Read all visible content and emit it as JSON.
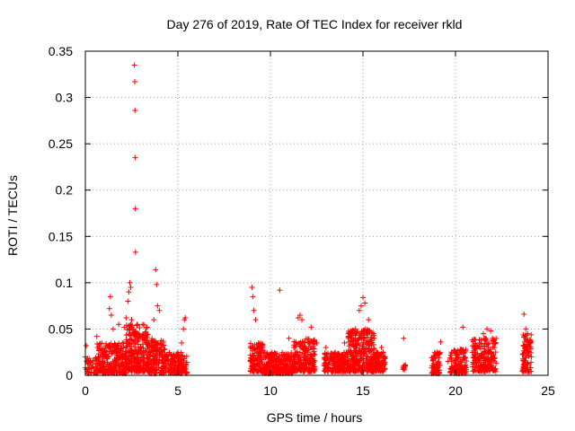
{
  "chart_data": {
    "type": "scatter",
    "title": "Day 276 of 2019, Rate Of TEC Index for receiver rkld",
    "xlabel": "GPS time / hours",
    "ylabel": "ROTI / TECUs",
    "xlim": [
      0,
      25
    ],
    "ylim": [
      0,
      0.35
    ],
    "xticks": [
      0,
      5,
      10,
      15,
      20,
      25
    ],
    "xtick_labels": [
      "0",
      "5",
      "10",
      "15",
      "20",
      "25"
    ],
    "yticks": [
      0,
      0.05,
      0.1,
      0.15,
      0.2,
      0.25,
      0.3,
      0.35
    ],
    "ytick_labels": [
      "0",
      "0.05",
      "0.1",
      "0.15",
      "0.2",
      "0.25",
      "0.3",
      "0.35"
    ],
    "grid": true,
    "marker": "+",
    "color": "#ff0000",
    "series": [
      {
        "name": "ROTI",
        "x": [
          0.0,
          0.0,
          0.05,
          0.6,
          0.62,
          0.65,
          0.7,
          0.75,
          0.9,
          1.2,
          1.3,
          1.3,
          1.35,
          1.4,
          1.5,
          1.6,
          1.8,
          2.0,
          2.1,
          2.2,
          2.3,
          2.35,
          2.4,
          2.45,
          2.5,
          2.6,
          2.7,
          2.8,
          2.9,
          3.0,
          3.2,
          3.5,
          3.7,
          3.8,
          3.85,
          3.9,
          4.0,
          4.2,
          4.5,
          5.0,
          5.2,
          5.3,
          5.35,
          5.4,
          2.65,
          2.67,
          2.68,
          2.69,
          2.7,
          2.71,
          9.0,
          9.05,
          9.1,
          9.2,
          9.5,
          10.0,
          10.5,
          11.0,
          11.5,
          11.6,
          11.7,
          12.0,
          12.2,
          12.5,
          13.0,
          13.5,
          14.0,
          14.3,
          14.6,
          14.8,
          14.9,
          15.0,
          15.1,
          15.3,
          15.6,
          16.0,
          16.2,
          17.2,
          17.25,
          18.8,
          19.0,
          19.2,
          19.6,
          20.0,
          20.3,
          20.4,
          21.0,
          21.5,
          21.7,
          21.9,
          22.0,
          22.1,
          23.7,
          23.8,
          23.9,
          24.0,
          24.1
        ],
        "y": [
          0.008,
          0.02,
          0.032,
          0.015,
          0.042,
          0.03,
          0.02,
          0.012,
          0.025,
          0.018,
          0.03,
          0.072,
          0.085,
          0.065,
          0.05,
          0.03,
          0.055,
          0.035,
          0.052,
          0.062,
          0.08,
          0.09,
          0.1,
          0.095,
          0.06,
          0.05,
          0.045,
          0.055,
          0.04,
          0.03,
          0.025,
          0.02,
          0.06,
          0.114,
          0.098,
          0.075,
          0.07,
          0.035,
          0.015,
          0.025,
          0.035,
          0.05,
          0.06,
          0.062,
          0.335,
          0.317,
          0.286,
          0.235,
          0.18,
          0.133,
          0.095,
          0.085,
          0.07,
          0.06,
          0.03,
          0.02,
          0.092,
          0.04,
          0.062,
          0.065,
          0.06,
          0.025,
          0.052,
          0.035,
          0.03,
          0.025,
          0.035,
          0.045,
          0.05,
          0.07,
          0.075,
          0.084,
          0.078,
          0.06,
          0.04,
          0.03,
          0.02,
          0.04,
          0.008,
          0.02,
          0.025,
          0.036,
          0.015,
          0.025,
          0.028,
          0.052,
          0.02,
          0.045,
          0.05,
          0.048,
          0.04,
          0.03,
          0.066,
          0.05,
          0.045,
          0.035,
          0.02
        ]
      }
    ],
    "dense_clusters": [
      {
        "x_range": [
          0.05,
          0.6
        ],
        "y_range": [
          0.002,
          0.02
        ],
        "count": 40
      },
      {
        "x_range": [
          0.6,
          2.2
        ],
        "y_range": [
          0.002,
          0.035
        ],
        "count": 260
      },
      {
        "x_range": [
          2.2,
          3.4
        ],
        "y_range": [
          0.004,
          0.055
        ],
        "count": 260
      },
      {
        "x_range": [
          3.4,
          4.3
        ],
        "y_range": [
          0.002,
          0.04
        ],
        "count": 160
      },
      {
        "x_range": [
          4.3,
          5.5
        ],
        "y_range": [
          0.002,
          0.025
        ],
        "count": 160
      },
      {
        "x_range": [
          8.9,
          9.6
        ],
        "y_range": [
          0.004,
          0.035
        ],
        "count": 130
      },
      {
        "x_range": [
          9.6,
          11.2
        ],
        "y_range": [
          0.002,
          0.025
        ],
        "count": 260
      },
      {
        "x_range": [
          11.2,
          12.4
        ],
        "y_range": [
          0.004,
          0.04
        ],
        "count": 200
      },
      {
        "x_range": [
          12.9,
          14.2
        ],
        "y_range": [
          0.004,
          0.025
        ],
        "count": 200
      },
      {
        "x_range": [
          14.2,
          15.6
        ],
        "y_range": [
          0.004,
          0.05
        ],
        "count": 320
      },
      {
        "x_range": [
          15.6,
          16.2
        ],
        "y_range": [
          0.004,
          0.025
        ],
        "count": 90
      },
      {
        "x_range": [
          17.15,
          17.3
        ],
        "y_range": [
          0.006,
          0.012
        ],
        "count": 10
      },
      {
        "x_range": [
          18.7,
          19.2
        ],
        "y_range": [
          0.002,
          0.025
        ],
        "count": 70
      },
      {
        "x_range": [
          19.7,
          20.6
        ],
        "y_range": [
          0.002,
          0.028
        ],
        "count": 130
      },
      {
        "x_range": [
          20.9,
          22.2
        ],
        "y_range": [
          0.004,
          0.04
        ],
        "count": 200
      },
      {
        "x_range": [
          23.6,
          24.1
        ],
        "y_range": [
          0.004,
          0.045
        ],
        "count": 90
      }
    ]
  }
}
